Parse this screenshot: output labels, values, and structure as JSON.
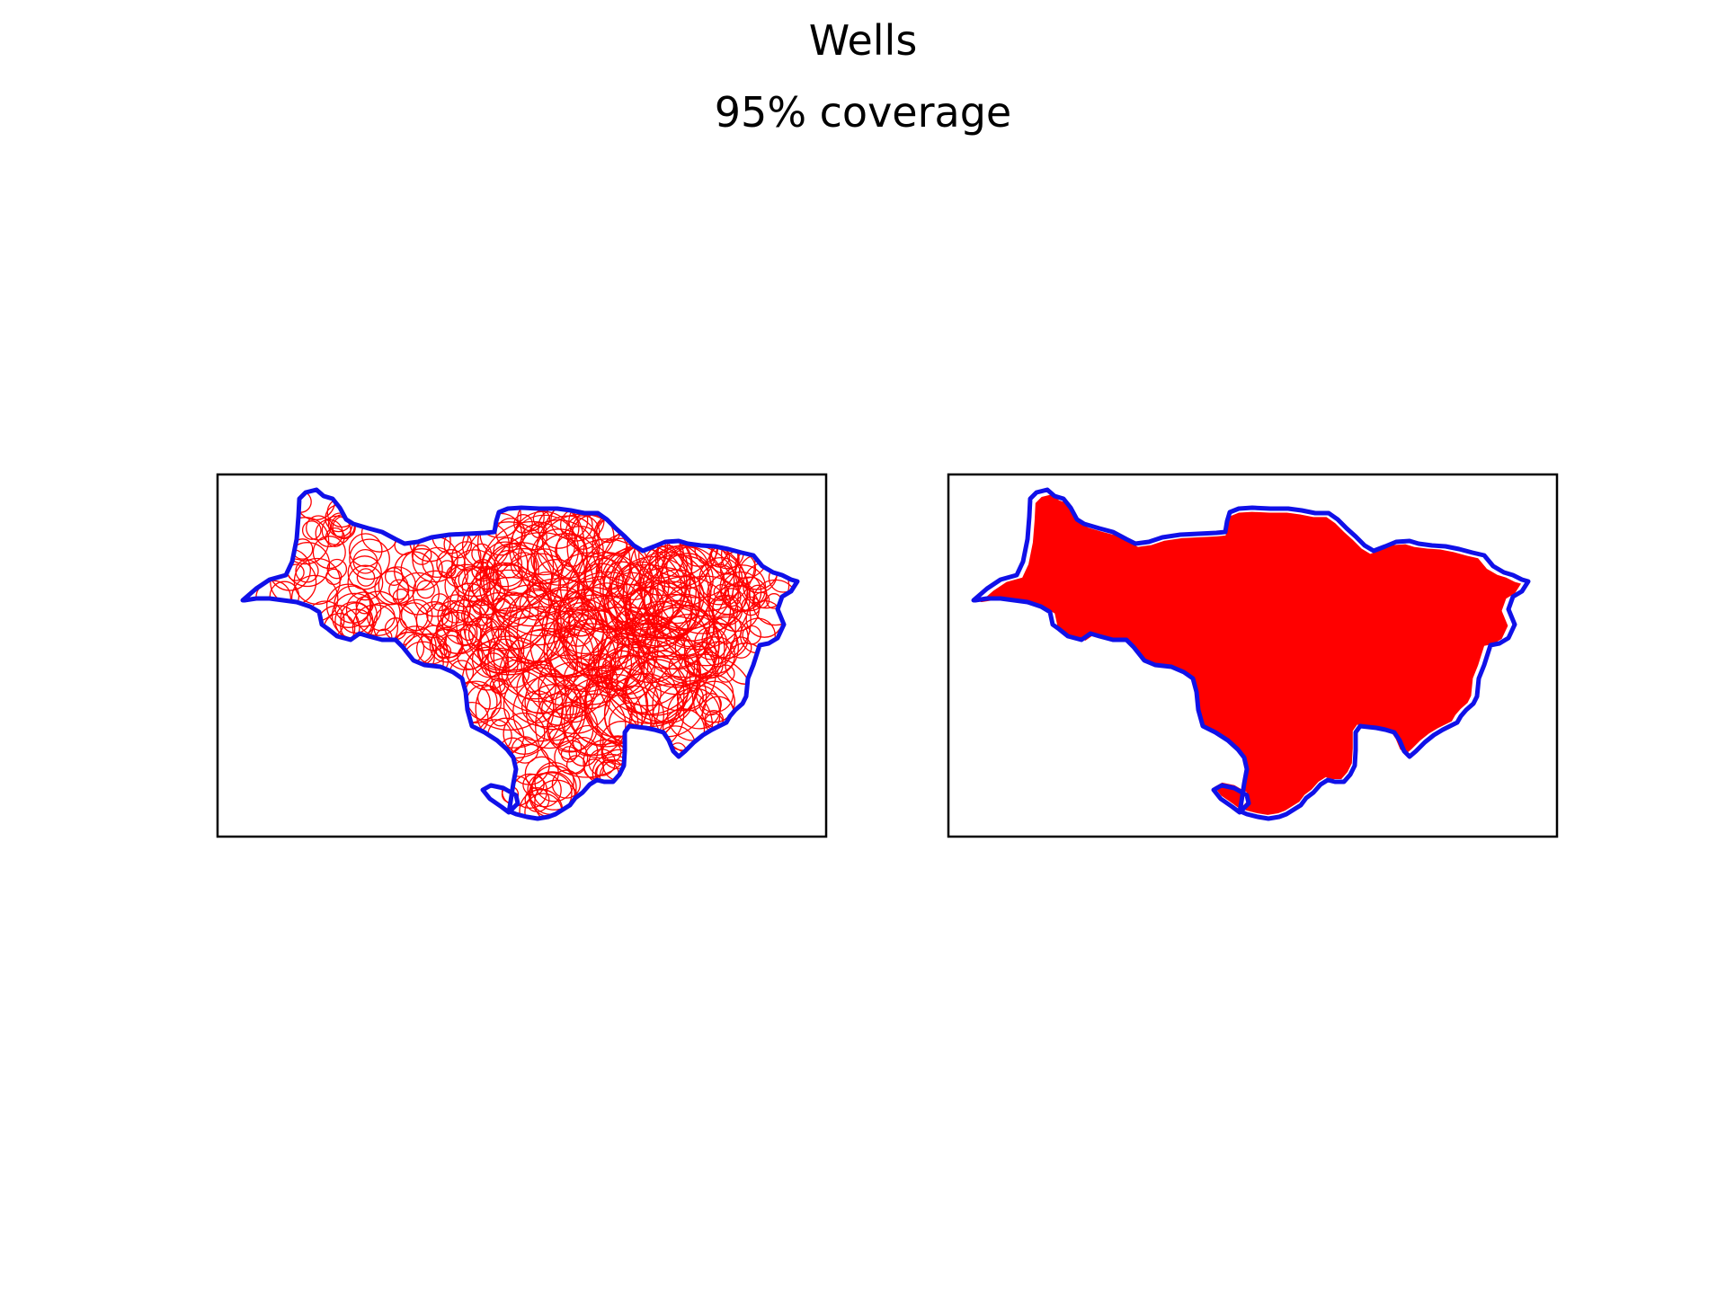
{
  "figure": {
    "title": "Wells",
    "subtitle": "95% coverage"
  },
  "panels": [
    {
      "id": "circles-panel",
      "style": "circle-outlines"
    },
    {
      "id": "filled-panel",
      "style": "filled-coverage"
    }
  ],
  "colors": {
    "boundary": "#1010e8",
    "coverage": "#ff0000",
    "frame": "#000000",
    "background": "#ffffff"
  }
}
